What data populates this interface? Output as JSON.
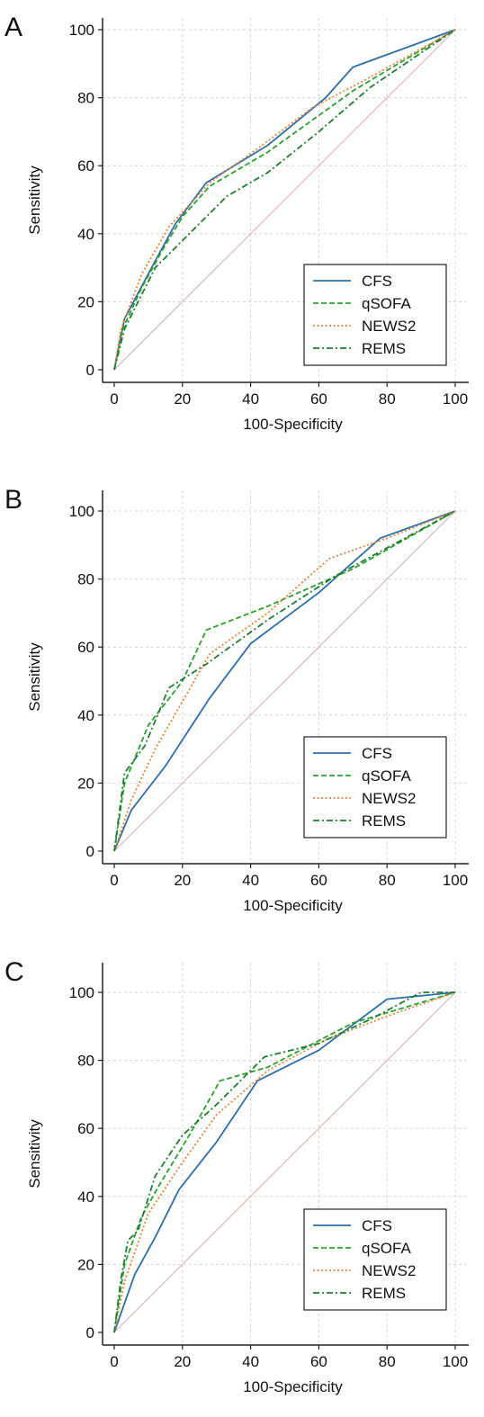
{
  "chart_data": [
    {
      "panel_label": "A",
      "type": "line",
      "xlabel": "100-Specificity",
      "ylabel": "Sensitivity",
      "xlim": [
        0,
        100
      ],
      "ylim": [
        0,
        100
      ],
      "ticks": [
        "0",
        "20",
        "40",
        "60",
        "80",
        "100"
      ],
      "grid": true,
      "legend_position": "bottom-right",
      "reference_line": {
        "color": "#d9b8b8",
        "points": [
          [
            0,
            0
          ],
          [
            100,
            100
          ]
        ]
      },
      "series": [
        {
          "name": "CFS",
          "color": "#2f6ea8",
          "dash": "solid",
          "points": [
            [
              0,
              0
            ],
            [
              3,
              15
            ],
            [
              12,
              32
            ],
            [
              18,
              43
            ],
            [
              27,
              55
            ],
            [
              45,
              66
            ],
            [
              62,
              80
            ],
            [
              70,
              89
            ],
            [
              100,
              100
            ]
          ]
        },
        {
          "name": "qSOFA",
          "color": "#2ca02c",
          "dash": "dashed",
          "points": [
            [
              0,
              0
            ],
            [
              2,
              11
            ],
            [
              8,
              24
            ],
            [
              14,
              35
            ],
            [
              20,
              45
            ],
            [
              28,
              54
            ],
            [
              45,
              64
            ],
            [
              70,
              82
            ],
            [
              100,
              100
            ]
          ]
        },
        {
          "name": "NEWS2",
          "color": "#e8823a",
          "dash": "dotted",
          "points": [
            [
              0,
              0
            ],
            [
              2,
              12
            ],
            [
              8,
              28
            ],
            [
              16,
              42
            ],
            [
              28,
              55
            ],
            [
              42,
              65
            ],
            [
              58,
              77
            ],
            [
              75,
              86
            ],
            [
              100,
              100
            ]
          ]
        },
        {
          "name": "REMS",
          "color": "#1e7d32",
          "dash": "dashdot",
          "points": [
            [
              0,
              0
            ],
            [
              3,
              12
            ],
            [
              12,
              30
            ],
            [
              20,
              38
            ],
            [
              33,
              51
            ],
            [
              45,
              58
            ],
            [
              60,
              70
            ],
            [
              75,
              83
            ],
            [
              100,
              100
            ]
          ]
        }
      ]
    },
    {
      "panel_label": "B",
      "type": "line",
      "xlabel": "100-Specificity",
      "ylabel": "Sensitivity",
      "xlim": [
        0,
        100
      ],
      "ylim": [
        0,
        100
      ],
      "ticks": [
        "0",
        "20",
        "40",
        "60",
        "80",
        "100"
      ],
      "grid": true,
      "legend_position": "bottom-right",
      "reference_line": {
        "color": "#d9b8b8",
        "points": [
          [
            0,
            0
          ],
          [
            100,
            100
          ]
        ]
      },
      "series": [
        {
          "name": "CFS",
          "color": "#2f6ea8",
          "dash": "solid",
          "points": [
            [
              0,
              0
            ],
            [
              5,
              12
            ],
            [
              15,
              25
            ],
            [
              28,
              45
            ],
            [
              40,
              61
            ],
            [
              60,
              76
            ],
            [
              78,
              92
            ],
            [
              100,
              100
            ]
          ]
        },
        {
          "name": "qSOFA",
          "color": "#2ca02c",
          "dash": "dashed",
          "points": [
            [
              0,
              0
            ],
            [
              3,
              20
            ],
            [
              10,
              37
            ],
            [
              20,
              50
            ],
            [
              27,
              65
            ],
            [
              45,
              72
            ],
            [
              70,
              83
            ],
            [
              100,
              100
            ]
          ]
        },
        {
          "name": "NEWS2",
          "color": "#e8823a",
          "dash": "dotted",
          "points": [
            [
              0,
              0
            ],
            [
              5,
              15
            ],
            [
              12,
              30
            ],
            [
              20,
              44
            ],
            [
              28,
              58
            ],
            [
              45,
              70
            ],
            [
              63,
              86
            ],
            [
              80,
              92
            ],
            [
              100,
              100
            ]
          ]
        },
        {
          "name": "REMS",
          "color": "#1e7d32",
          "dash": "dashdot",
          "points": [
            [
              0,
              0
            ],
            [
              3,
              23
            ],
            [
              9,
              31
            ],
            [
              16,
              48
            ],
            [
              27,
              55
            ],
            [
              45,
              68
            ],
            [
              65,
              81
            ],
            [
              100,
              100
            ]
          ]
        }
      ]
    },
    {
      "panel_label": "C",
      "type": "line",
      "xlabel": "100-Specificity",
      "ylabel": "Sensitivity",
      "xlim": [
        0,
        100
      ],
      "ylim": [
        0,
        100
      ],
      "ticks": [
        "0",
        "20",
        "40",
        "60",
        "80",
        "100"
      ],
      "grid": true,
      "legend_position": "bottom-right",
      "reference_line": {
        "color": "#d9b8b8",
        "points": [
          [
            0,
            0
          ],
          [
            100,
            100
          ]
        ]
      },
      "series": [
        {
          "name": "CFS",
          "color": "#2f6ea8",
          "dash": "solid",
          "points": [
            [
              0,
              0
            ],
            [
              6,
              17
            ],
            [
              12,
              28
            ],
            [
              19,
              42
            ],
            [
              30,
              56
            ],
            [
              42,
              74
            ],
            [
              60,
              83
            ],
            [
              80,
              98
            ],
            [
              100,
              100
            ]
          ]
        },
        {
          "name": "qSOFA",
          "color": "#2ca02c",
          "dash": "dashed",
          "points": [
            [
              0,
              0
            ],
            [
              3,
              20
            ],
            [
              8,
              34
            ],
            [
              13,
              43
            ],
            [
              22,
              58
            ],
            [
              31,
              74
            ],
            [
              45,
              78
            ],
            [
              70,
              91
            ],
            [
              100,
              100
            ]
          ]
        },
        {
          "name": "NEWS2",
          "color": "#e8823a",
          "dash": "dotted",
          "points": [
            [
              0,
              0
            ],
            [
              3,
              15
            ],
            [
              10,
              35
            ],
            [
              20,
              50
            ],
            [
              30,
              64
            ],
            [
              45,
              77
            ],
            [
              62,
              86
            ],
            [
              80,
              93
            ],
            [
              100,
              100
            ]
          ]
        },
        {
          "name": "REMS",
          "color": "#1e7d32",
          "dash": "dashdot",
          "points": [
            [
              0,
              0
            ],
            [
              2,
              16
            ],
            [
              4,
              27
            ],
            [
              7,
              30
            ],
            [
              12,
              46
            ],
            [
              20,
              58
            ],
            [
              30,
              67
            ],
            [
              44,
              81
            ],
            [
              60,
              85
            ],
            [
              75,
              92
            ],
            [
              90,
              100
            ],
            [
              100,
              100
            ]
          ]
        }
      ]
    }
  ]
}
